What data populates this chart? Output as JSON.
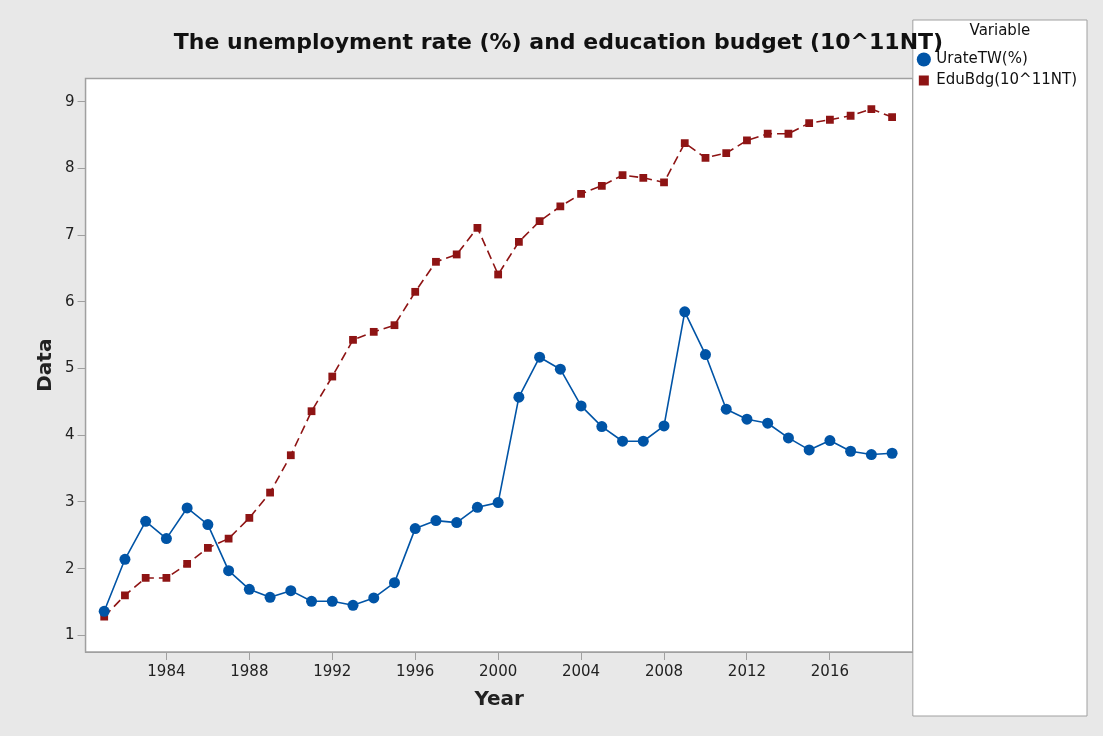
{
  "chart_data": {
    "type": "line",
    "title": "The unemployment rate (%) and education budget (10^11NT)",
    "xlabel": "Year",
    "ylabel": "Data",
    "legend_title": "Variable",
    "legend": "top right",
    "grid": false,
    "x": [
      1981,
      1982,
      1983,
      1984,
      1985,
      1986,
      1987,
      1988,
      1989,
      1990,
      1991,
      1992,
      1993,
      1994,
      1995,
      1996,
      1997,
      1998,
      1999,
      2000,
      2001,
      2002,
      2003,
      2004,
      2005,
      2006,
      2007,
      2008,
      2009,
      2010,
      2011,
      2012,
      2013,
      2014,
      2015,
      2016,
      2017,
      2018,
      2019
    ],
    "xlim": [
      1980.1,
      2020
    ],
    "xticks": [
      1984,
      1988,
      1992,
      1996,
      2000,
      2004,
      2008,
      2012,
      2016
    ],
    "ylim": [
      0.75,
      9.35
    ],
    "yticks": [
      1,
      2,
      3,
      4,
      5,
      6,
      7,
      8,
      9
    ],
    "series": [
      {
        "name": "UrateTW(%)",
        "color": "#0054a6",
        "marker": "circle",
        "line_style": "solid",
        "values": [
          1.36,
          2.14,
          2.71,
          2.45,
          2.91,
          2.66,
          1.97,
          1.69,
          1.57,
          1.67,
          1.51,
          1.51,
          1.45,
          1.56,
          1.79,
          2.6,
          2.72,
          2.69,
          2.92,
          2.99,
          4.57,
          5.17,
          4.99,
          4.44,
          4.13,
          3.91,
          3.91,
          4.14,
          5.85,
          5.21,
          4.39,
          4.24,
          4.18,
          3.96,
          3.78,
          3.92,
          3.76,
          3.71,
          3.73
        ]
      },
      {
        "name": "EduBdg(10^11NT)",
        "color": "#8e1414",
        "marker": "square",
        "line_style": "dashed",
        "values": [
          1.28,
          1.6,
          1.86,
          1.86,
          2.07,
          2.31,
          2.45,
          2.76,
          3.14,
          3.7,
          4.36,
          4.88,
          5.43,
          5.55,
          5.65,
          6.15,
          6.6,
          6.71,
          7.11,
          6.41,
          6.9,
          7.21,
          7.43,
          7.62,
          7.74,
          7.9,
          7.86,
          7.79,
          8.38,
          8.16,
          8.23,
          8.42,
          8.52,
          8.52,
          8.68,
          8.73,
          8.79,
          8.89,
          8.77
        ]
      }
    ]
  }
}
